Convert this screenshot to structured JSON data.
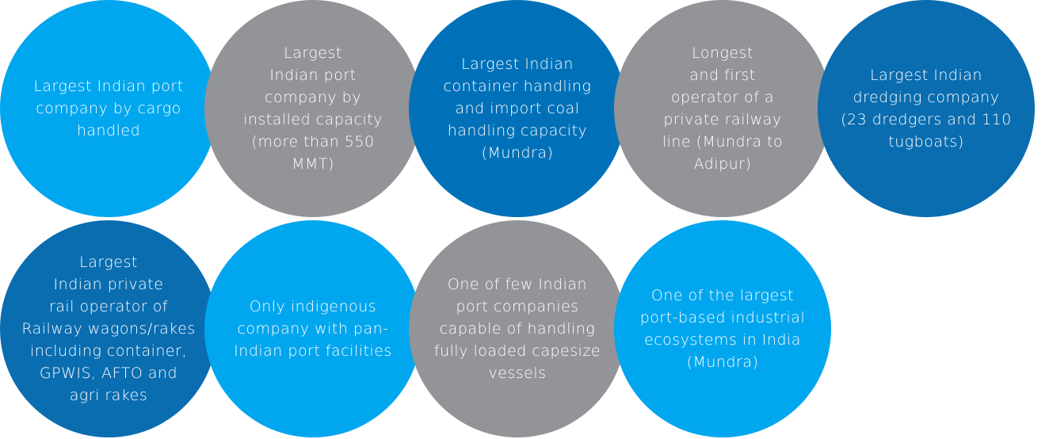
{
  "colors": {
    "light_blue": "#00A6EE",
    "gray": "#929497",
    "mid_blue": "#0071B8",
    "dark_blue": "#0A6DB0"
  },
  "row1": [
    {
      "text": "Largest Indian port\ncompany by cargo\nhandled",
      "color": "#00A6EE"
    },
    {
      "text": "Largest\nIndian port\ncompany by\ninstalled capacity\n(more than 550\nMMT)",
      "color": "#929497"
    },
    {
      "text": "Largest Indian\ncontainer handling\nand import coal\nhandling capacity\n(Mundra)",
      "color": "#0071B8"
    },
    {
      "text": "Longest\nand first\noperator of a\nprivate railway\nline (Mundra to\nAdipur)",
      "color": "#929497"
    },
    {
      "text": "Largest Indian\ndredging company\n(23 dredgers and 110\ntugboats)",
      "color": "#0A6DB0"
    }
  ],
  "row2": [
    {
      "text": "Largest\nIndian private\nrail operator of\nRailway wagons/rakes\nincluding container,\nGPWIS, AFTO and\nagri rakes",
      "color": "#0A6DB0"
    },
    {
      "text": "Only indigenous\ncompany with pan-\nIndian port facilities",
      "color": "#00A6EE"
    },
    {
      "text": "One of few Indian\nport companies\ncapable of handling\nfully loaded capesize\nvessels",
      "color": "#929497"
    },
    {
      "text": "One of the largest\nport-based industrial\necosystems in India\n(Mundra)",
      "color": "#00A6EE"
    }
  ]
}
